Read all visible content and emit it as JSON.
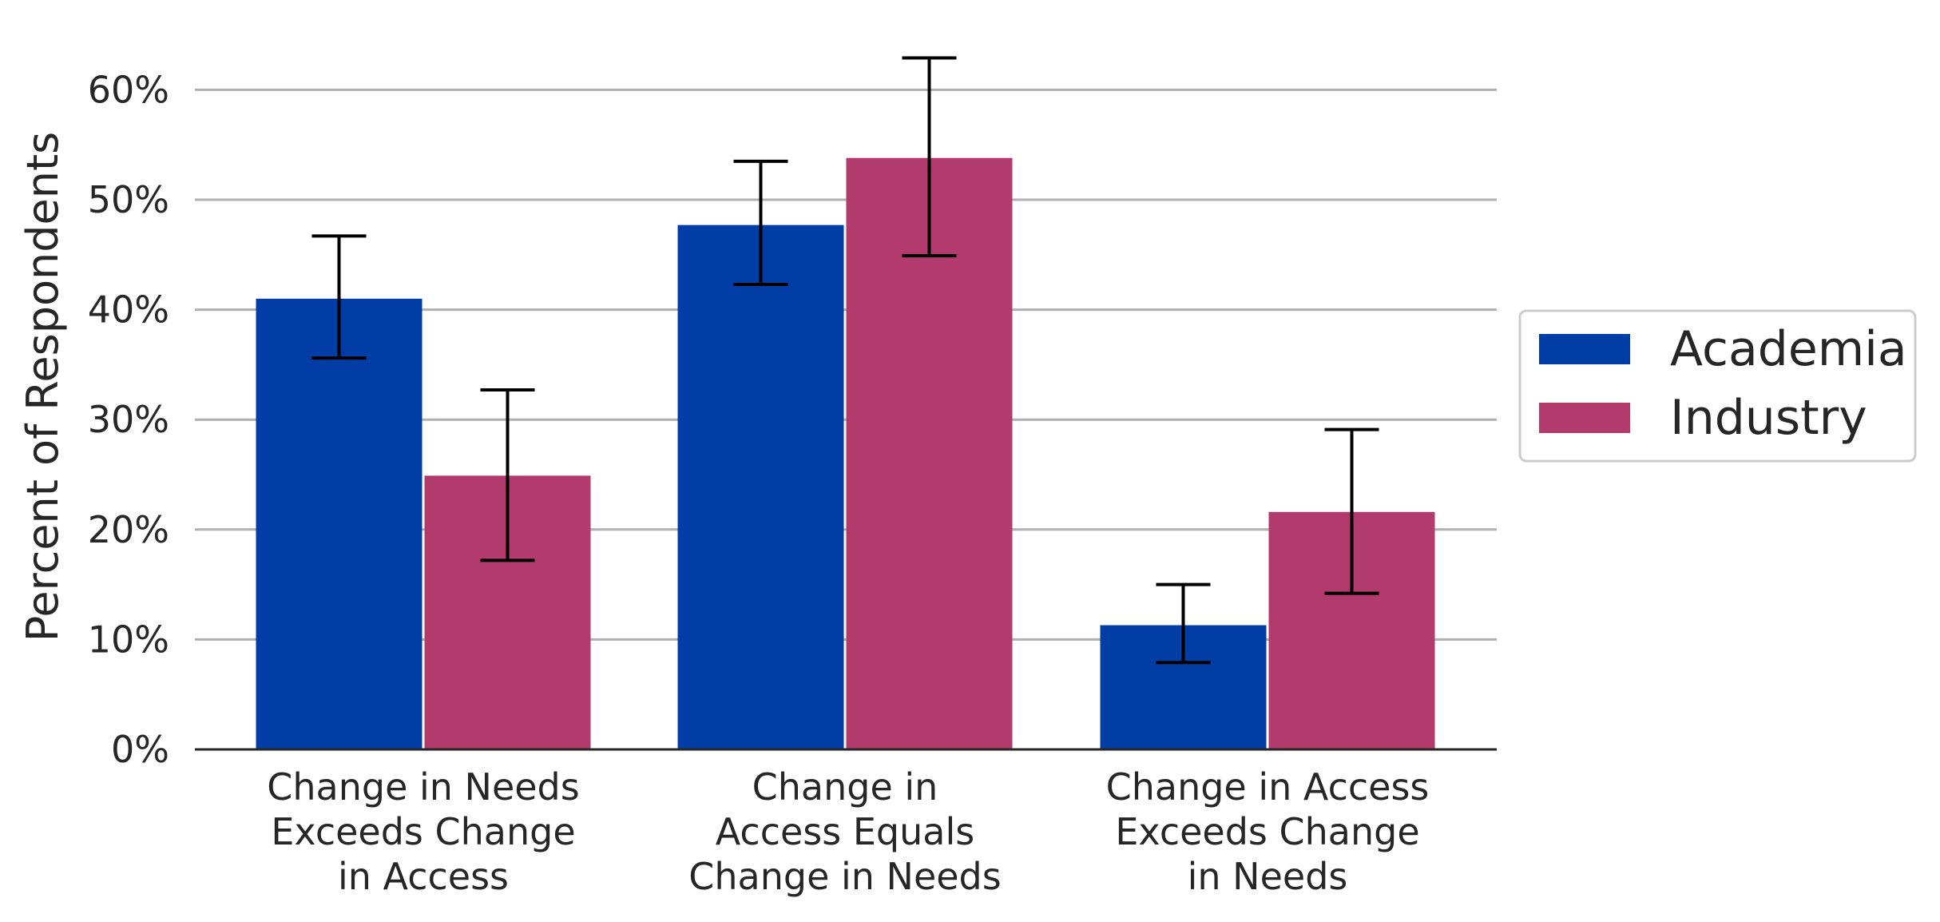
{
  "chart_data": {
    "type": "bar",
    "ylabel": "Percent of Respondents",
    "xlabel": "",
    "ylim": [
      0,
      0.65
    ],
    "yticks": [
      0,
      0.1,
      0.2,
      0.3,
      0.4,
      0.5,
      0.6
    ],
    "ytick_labels": [
      "0%",
      "10%",
      "20%",
      "30%",
      "40%",
      "50%",
      "60%"
    ],
    "grid": "horizontal",
    "legend_position": "right",
    "categories": [
      [
        "Change in Needs",
        "Exceeds Change",
        "in Access"
      ],
      [
        "Change in",
        "Access Equals",
        "Change in Needs"
      ],
      [
        "Change in Access",
        "Exceeds Change",
        "in Needs"
      ]
    ],
    "series": [
      {
        "name": "Academia",
        "color": "#003da5",
        "values": [
          0.41,
          0.477,
          0.113
        ],
        "err_low": [
          0.356,
          0.423,
          0.079
        ],
        "err_high": [
          0.467,
          0.535,
          0.15
        ]
      },
      {
        "name": "Industry",
        "color": "#b23a6c",
        "values": [
          0.249,
          0.538,
          0.216
        ],
        "err_low": [
          0.172,
          0.449,
          0.142
        ],
        "err_high": [
          0.327,
          0.629,
          0.291
        ]
      }
    ]
  }
}
